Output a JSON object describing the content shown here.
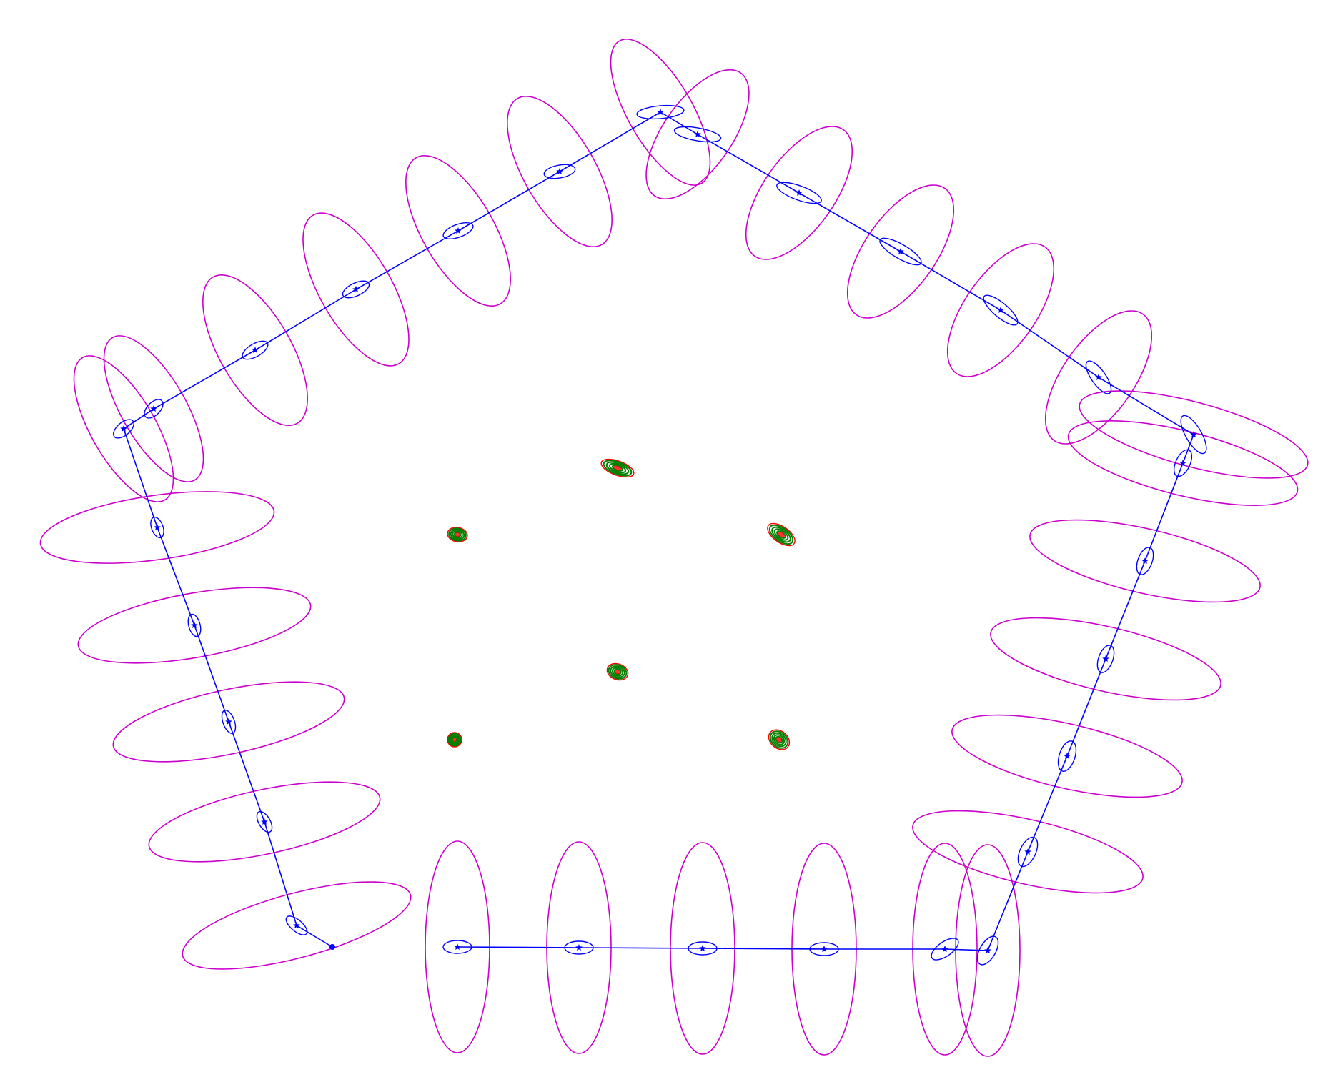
{
  "diagram": {
    "description_text": "",
    "colors": {
      "trajectory": "#0000ff",
      "pose_covariance": "#0000ff",
      "large_covariance": "#cc00cc",
      "landmark_outer": "#ff0000",
      "landmark_inner": "#008000",
      "background": "#ffffff"
    },
    "marker_icon": "star-icon",
    "start_marker_icon": "dot-icon",
    "landmark_icon": "landmark-cluster-icon"
  }
}
